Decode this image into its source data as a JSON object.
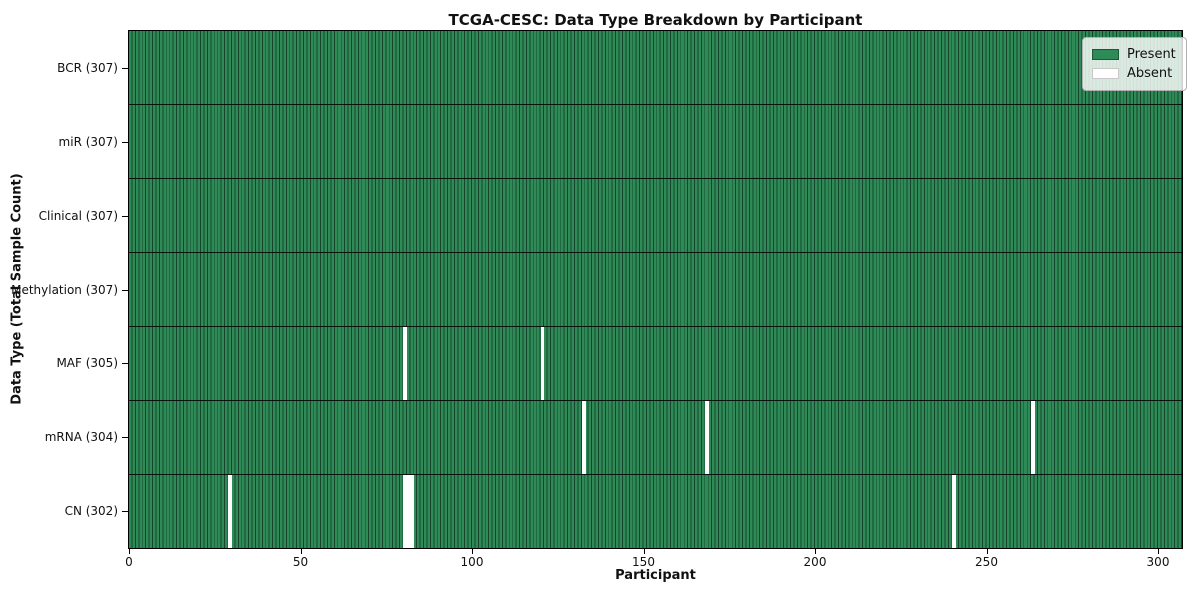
{
  "chart_data": {
    "type": "heatmap",
    "title": "TCGA-CESC: Data Type Breakdown by Participant",
    "xlabel": "Participant",
    "ylabel": "Data Type (Total Sample Count)",
    "x_ticks": [
      0,
      50,
      100,
      150,
      200,
      250,
      300
    ],
    "x_range": [
      0,
      307
    ],
    "n_participants": 307,
    "grid": "vertical-cell-edges-and-row-separators",
    "legend": {
      "position": "upper-right",
      "items": [
        {
          "label": "Present",
          "color": "#2e8b57",
          "edge": "#1d5737"
        },
        {
          "label": "Absent",
          "color": "#ffffff",
          "edge": "#c8c8c8"
        }
      ]
    },
    "rows": [
      {
        "label": "BCR (307)",
        "data_type": "BCR",
        "total_samples": 307,
        "absent_participants": []
      },
      {
        "label": "miR (307)",
        "data_type": "miR",
        "total_samples": 307,
        "absent_participants": []
      },
      {
        "label": "Clinical (307)",
        "data_type": "Clinical",
        "total_samples": 307,
        "absent_participants": []
      },
      {
        "label": "Methylation (307)",
        "data_type": "Methylation",
        "total_samples": 307,
        "absent_participants": []
      },
      {
        "label": "MAF (305)",
        "data_type": "MAF",
        "total_samples": 305,
        "absent_participants": [
          80,
          120
        ]
      },
      {
        "label": "mRNA (304)",
        "data_type": "mRNA",
        "total_samples": 304,
        "absent_participants": [
          132,
          168,
          263
        ]
      },
      {
        "label": "CN (302)",
        "data_type": "CN",
        "total_samples": 302,
        "absent_participants": [
          29,
          80,
          81,
          82,
          240
        ]
      }
    ],
    "colors": {
      "present": "#2e8b57",
      "absent": "#ffffff",
      "cell_edge": "rgba(0,0,0,0.50)",
      "row_separator": "rgba(0,0,0,0.85)",
      "spine": "#000000"
    }
  }
}
